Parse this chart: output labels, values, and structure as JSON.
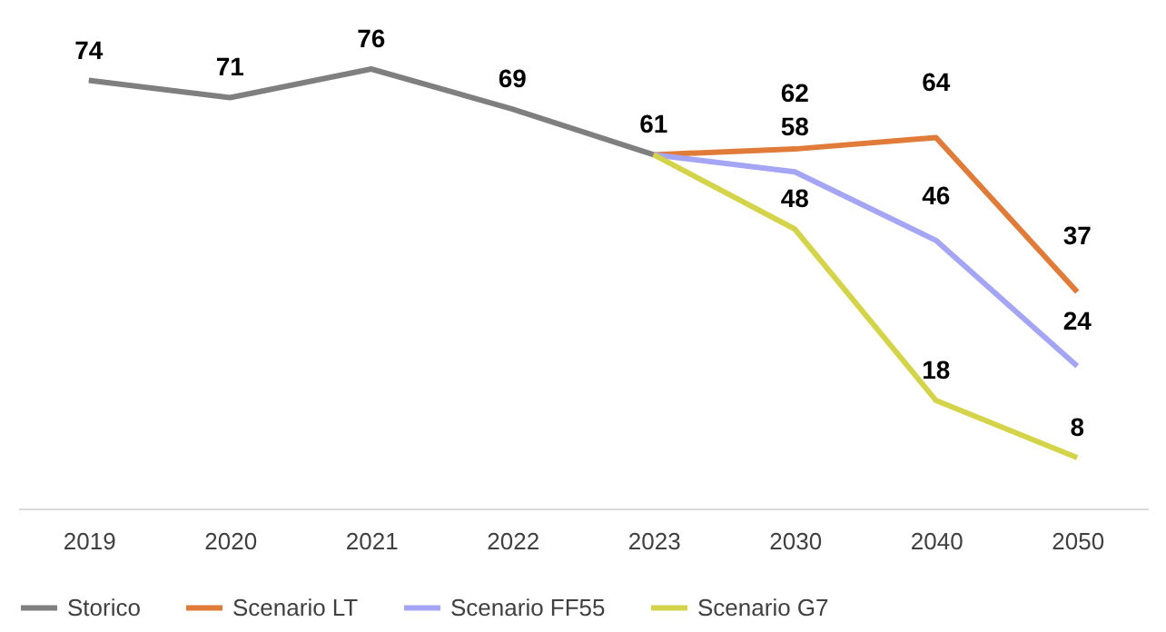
{
  "chart_data": {
    "type": "line",
    "categories": [
      "2019",
      "2020",
      "2021",
      "2022",
      "2023",
      "2030",
      "2040",
      "2050"
    ],
    "series": [
      {
        "name": "Storico",
        "color": "#7f7f7f",
        "values": [
          74,
          71,
          76,
          69,
          61,
          null,
          null,
          null
        ],
        "value_labels": [
          "74",
          "71",
          "76",
          "69",
          "61",
          null,
          null,
          null
        ]
      },
      {
        "name": "Scenario LT",
        "color": "#e07b39",
        "values": [
          null,
          null,
          null,
          null,
          61,
          62,
          64,
          37
        ],
        "value_labels": [
          null,
          null,
          null,
          null,
          null,
          "62",
          "64",
          "37"
        ]
      },
      {
        "name": "Scenario FF55",
        "color": "#a5a5f5",
        "values": [
          null,
          null,
          null,
          null,
          61,
          58,
          46,
          24
        ],
        "value_labels": [
          null,
          null,
          null,
          null,
          null,
          "58",
          "46",
          "24"
        ]
      },
      {
        "name": "Scenario G7",
        "color": "#d4d44a",
        "values": [
          null,
          null,
          null,
          null,
          61,
          48,
          18,
          8
        ],
        "value_labels": [
          null,
          null,
          null,
          null,
          null,
          "48",
          "18",
          "8"
        ]
      }
    ],
    "legend": "bottom",
    "grid": false,
    "marker": "none",
    "line_style": "solid"
  }
}
